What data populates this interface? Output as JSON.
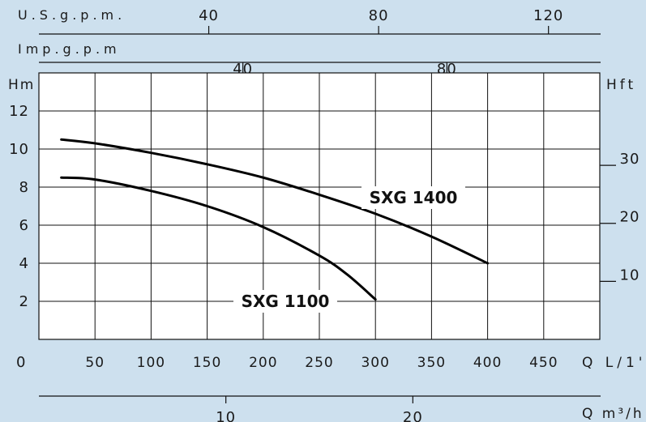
{
  "chart_data": {
    "type": "line",
    "title": "",
    "xlabel": "Q L/1'",
    "ylabel": "Hm",
    "y2label": "Hft",
    "x": [
      20,
      300
    ],
    "xlim": [
      0,
      500
    ],
    "ylim": [
      0,
      14
    ],
    "x_ticks": [
      50,
      100,
      150,
      200,
      250,
      300,
      350,
      400,
      450
    ],
    "y_ticks": [
      2,
      4,
      6,
      8,
      10,
      12
    ],
    "grid": true,
    "origin_label": "0",
    "series": [
      {
        "name": "SXG 1400",
        "x": [
          20,
          50,
          100,
          150,
          200,
          250,
          300,
          350,
          400
        ],
        "y": [
          10.5,
          10.3,
          9.8,
          9.2,
          8.5,
          7.6,
          6.6,
          5.4,
          4.0
        ]
      },
      {
        "name": "SXG 1100",
        "x": [
          20,
          50,
          100,
          150,
          200,
          250,
          275,
          300
        ],
        "y": [
          8.5,
          8.4,
          7.8,
          7.0,
          5.9,
          4.4,
          3.4,
          2.1
        ]
      }
    ],
    "secondary_axes": {
      "hft": {
        "label": "Hft",
        "ticks": [
          10,
          20,
          30
        ]
      },
      "usgpm": {
        "label": "U.S.g.p.m.",
        "ticks": [
          40,
          80,
          120
        ]
      },
      "impgpm": {
        "label": "Imp.g.p.m",
        "ticks": [
          40,
          80
        ]
      },
      "m3h": {
        "label": "Q m³/h",
        "ticks": [
          10,
          20
        ]
      }
    }
  }
}
